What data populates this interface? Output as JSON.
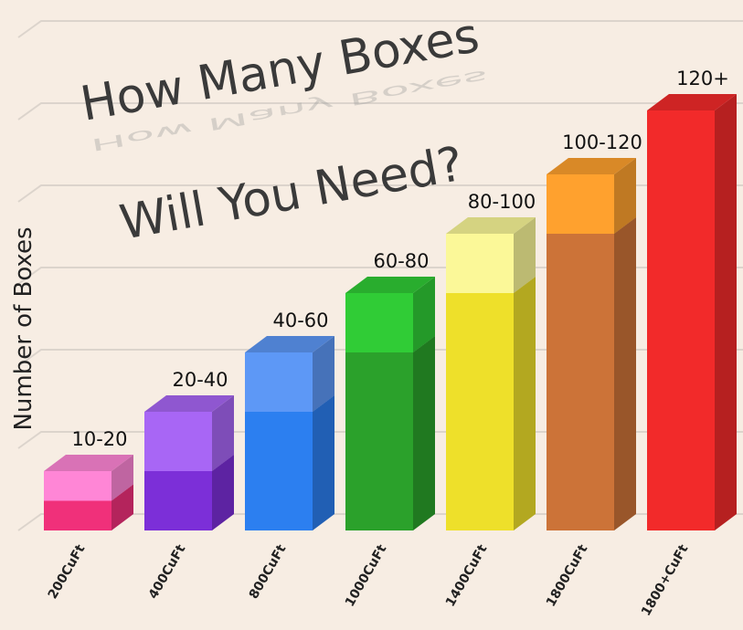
{
  "chart_data": {
    "type": "bar3d-range",
    "title_lines": [
      "How Many Boxes",
      "Will You Need?"
    ],
    "y_label": "Number of Boxes",
    "categories": [
      "200CuFt",
      "400CuFt",
      "800CuFt",
      "1000CuFt",
      "1400CuFt",
      "1800CuFt",
      "1800+CuFt"
    ],
    "values": [
      [
        10,
        20
      ],
      [
        20,
        40
      ],
      [
        40,
        60
      ],
      [
        60,
        80
      ],
      [
        80,
        100
      ],
      [
        100,
        120
      ],
      [
        120
      ]
    ],
    "value_labels": [
      "10-20",
      "20-40",
      "40-60",
      "60-80",
      "80-100",
      "100-120",
      "120+"
    ],
    "colors": [
      "#f0307a",
      "#7c2fd8",
      "#2c7ff0",
      "#2ba12b",
      "#eee02a",
      "#cc7338",
      "#f22a2a"
    ],
    "light_colors": [
      "#ff86d6",
      "#a866f5",
      "#5d98f6",
      "#30cc36",
      "#fbf898",
      "#ffa12e",
      "#f22a2a"
    ],
    "grid": true
  }
}
